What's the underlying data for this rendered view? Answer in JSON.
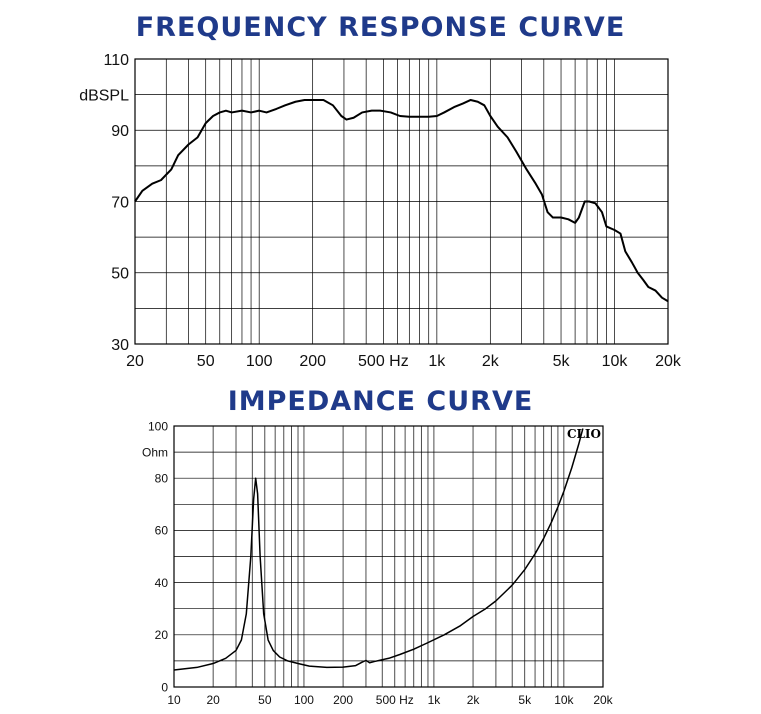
{
  "chart_data": [
    {
      "type": "line",
      "title": "FREQUENCY RESPONSE CURVE",
      "ylabel": "dBSPL",
      "xlabel": "",
      "xscale": "log",
      "xlim": [
        20,
        20000
      ],
      "ylim": [
        30,
        110
      ],
      "grid": true,
      "x_ticks": [
        {
          "value": 20,
          "label": "20"
        },
        {
          "value": 50,
          "label": "50"
        },
        {
          "value": 100,
          "label": "100"
        },
        {
          "value": 200,
          "label": "200"
        },
        {
          "value": 500,
          "label": "500 Hz"
        },
        {
          "value": 1000,
          "label": "1k"
        },
        {
          "value": 2000,
          "label": "2k"
        },
        {
          "value": 5000,
          "label": "5k"
        },
        {
          "value": 10000,
          "label": "10k"
        },
        {
          "value": 20000,
          "label": "20k"
        }
      ],
      "y_ticks": [
        {
          "value": 30,
          "label": "30"
        },
        {
          "value": 50,
          "label": "50"
        },
        {
          "value": 70,
          "label": "70"
        },
        {
          "value": 90,
          "label": "90"
        },
        {
          "value": 110,
          "label": "110"
        }
      ],
      "series": [
        {
          "color": "#000000",
          "points": [
            [
              20,
              70
            ],
            [
              22,
              73
            ],
            [
              25,
              75
            ],
            [
              28,
              76
            ],
            [
              32,
              79
            ],
            [
              35,
              83
            ],
            [
              40,
              86
            ],
            [
              45,
              88
            ],
            [
              50,
              92
            ],
            [
              55,
              94
            ],
            [
              60,
              95
            ],
            [
              65,
              95.5
            ],
            [
              70,
              95
            ],
            [
              80,
              95.5
            ],
            [
              90,
              95
            ],
            [
              100,
              95.5
            ],
            [
              110,
              95
            ],
            [
              125,
              96
            ],
            [
              140,
              97
            ],
            [
              160,
              98
            ],
            [
              180,
              98.5
            ],
            [
              200,
              98.5
            ],
            [
              230,
              98.5
            ],
            [
              260,
              97
            ],
            [
              290,
              94
            ],
            [
              310,
              93
            ],
            [
              340,
              93.5
            ],
            [
              380,
              95
            ],
            [
              430,
              95.5
            ],
            [
              480,
              95.5
            ],
            [
              550,
              95
            ],
            [
              620,
              94
            ],
            [
              700,
              93.8
            ],
            [
              800,
              93.8
            ],
            [
              900,
              93.8
            ],
            [
              1000,
              94
            ],
            [
              1100,
              95
            ],
            [
              1250,
              96.5
            ],
            [
              1400,
              97.5
            ],
            [
              1550,
              98.5
            ],
            [
              1700,
              98
            ],
            [
              1850,
              97
            ],
            [
              2000,
              94
            ],
            [
              2200,
              91
            ],
            [
              2500,
              88
            ],
            [
              2800,
              84
            ],
            [
              3200,
              79
            ],
            [
              3600,
              75
            ],
            [
              3900,
              72
            ],
            [
              4200,
              67
            ],
            [
              4500,
              65.5
            ],
            [
              5000,
              65.5
            ],
            [
              5500,
              65
            ],
            [
              6000,
              64
            ],
            [
              6300,
              65.5
            ],
            [
              6800,
              70
            ],
            [
              7200,
              70
            ],
            [
              7800,
              69.5
            ],
            [
              8500,
              67
            ],
            [
              9000,
              63
            ],
            [
              10000,
              62
            ],
            [
              10800,
              61
            ],
            [
              11500,
              56
            ],
            [
              12500,
              53
            ],
            [
              13500,
              50
            ],
            [
              14500,
              48
            ],
            [
              15500,
              46
            ],
            [
              17000,
              45
            ],
            [
              18500,
              43
            ],
            [
              20000,
              42
            ]
          ]
        }
      ]
    },
    {
      "type": "line",
      "title": "IMPEDANCE CURVE",
      "ylabel": "Ohm",
      "xlabel": "",
      "xscale": "log",
      "xlim": [
        10,
        20000
      ],
      "ylim": [
        0,
        100
      ],
      "grid": true,
      "annotation": "CLIO",
      "x_ticks": [
        {
          "value": 10,
          "label": "10"
        },
        {
          "value": 20,
          "label": "20"
        },
        {
          "value": 50,
          "label": "50"
        },
        {
          "value": 100,
          "label": "100"
        },
        {
          "value": 200,
          "label": "200"
        },
        {
          "value": 500,
          "label": "500 Hz"
        },
        {
          "value": 1000,
          "label": "1k"
        },
        {
          "value": 2000,
          "label": "2k"
        },
        {
          "value": 5000,
          "label": "5k"
        },
        {
          "value": 10000,
          "label": "10k"
        },
        {
          "value": 20000,
          "label": "20k"
        }
      ],
      "y_ticks": [
        {
          "value": 0,
          "label": "0"
        },
        {
          "value": 20,
          "label": "20"
        },
        {
          "value": 40,
          "label": "40"
        },
        {
          "value": 60,
          "label": "60"
        },
        {
          "value": 80,
          "label": "80"
        },
        {
          "value": 100,
          "label": "100"
        }
      ],
      "series": [
        {
          "color": "#000000",
          "points": [
            [
              10,
              6.5
            ],
            [
              15,
              7.5
            ],
            [
              20,
              9
            ],
            [
              25,
              11
            ],
            [
              30,
              14
            ],
            [
              33,
              18
            ],
            [
              36,
              28
            ],
            [
              39,
              50
            ],
            [
              41,
              72
            ],
            [
              42.5,
              80
            ],
            [
              44,
              74
            ],
            [
              46,
              50
            ],
            [
              49,
              28
            ],
            [
              53,
              18
            ],
            [
              58,
              14
            ],
            [
              65,
              11.5
            ],
            [
              75,
              10
            ],
            [
              90,
              9
            ],
            [
              110,
              8
            ],
            [
              150,
              7.5
            ],
            [
              200,
              7.6
            ],
            [
              250,
              8.2
            ],
            [
              280,
              9.5
            ],
            [
              300,
              10.2
            ],
            [
              320,
              9.3
            ],
            [
              350,
              9.8
            ],
            [
              450,
              11
            ],
            [
              550,
              12.5
            ],
            [
              700,
              14.5
            ],
            [
              900,
              17
            ],
            [
              1200,
              20
            ],
            [
              1600,
              23.5
            ],
            [
              2000,
              27
            ],
            [
              2500,
              30
            ],
            [
              3000,
              33
            ],
            [
              4000,
              39
            ],
            [
              5000,
              45
            ],
            [
              6000,
              51
            ],
            [
              7000,
              57
            ],
            [
              8000,
              63
            ],
            [
              9000,
              69
            ],
            [
              10000,
              75
            ],
            [
              11500,
              84
            ],
            [
              13000,
              93
            ],
            [
              14000,
              99
            ]
          ]
        }
      ]
    }
  ]
}
